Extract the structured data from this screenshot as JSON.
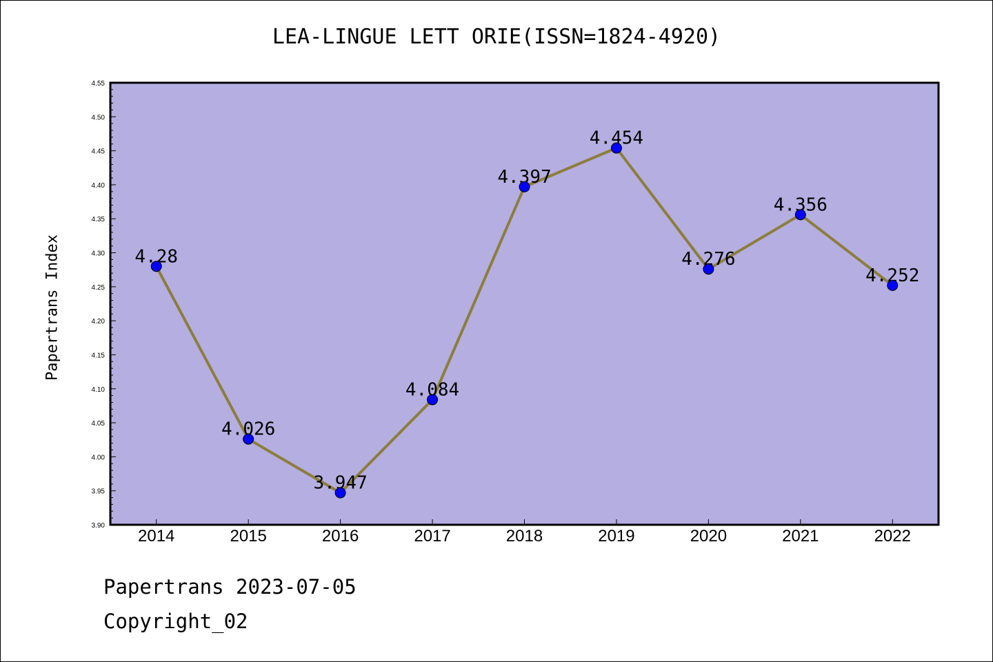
{
  "chart_data": {
    "type": "line",
    "title": "LEA-LINGUE LETT ORIE(ISSN=1824-4920)",
    "xlabel": "",
    "ylabel": "Papertrans Index",
    "categories": [
      "2014",
      "2015",
      "2016",
      "2017",
      "2018",
      "2019",
      "2020",
      "2021",
      "2022"
    ],
    "series": [
      {
        "values": [
          4.28,
          4.026,
          3.947,
          4.084,
          4.397,
          4.454,
          4.276,
          4.356,
          4.252
        ],
        "labels": [
          "4.28",
          "4.026",
          "3.947",
          "4.084",
          "4.397",
          "4.454",
          "4.276",
          "4.356",
          "4.252"
        ],
        "line_color": "#8B7E3C",
        "marker_color": "#0000FF"
      }
    ],
    "ylim": [
      3.9,
      4.55
    ],
    "yticks": [
      "3.90",
      "3.95",
      "4.00",
      "4.05",
      "4.10",
      "4.15",
      "4.20",
      "4.25",
      "4.30",
      "4.35",
      "4.40",
      "4.45",
      "4.50",
      "4.55"
    ],
    "plot_background": "#B5AEE1",
    "grid": false
  },
  "footer": {
    "date_line": "Papertrans 2023-07-05",
    "copyright": "Copyright_02"
  }
}
